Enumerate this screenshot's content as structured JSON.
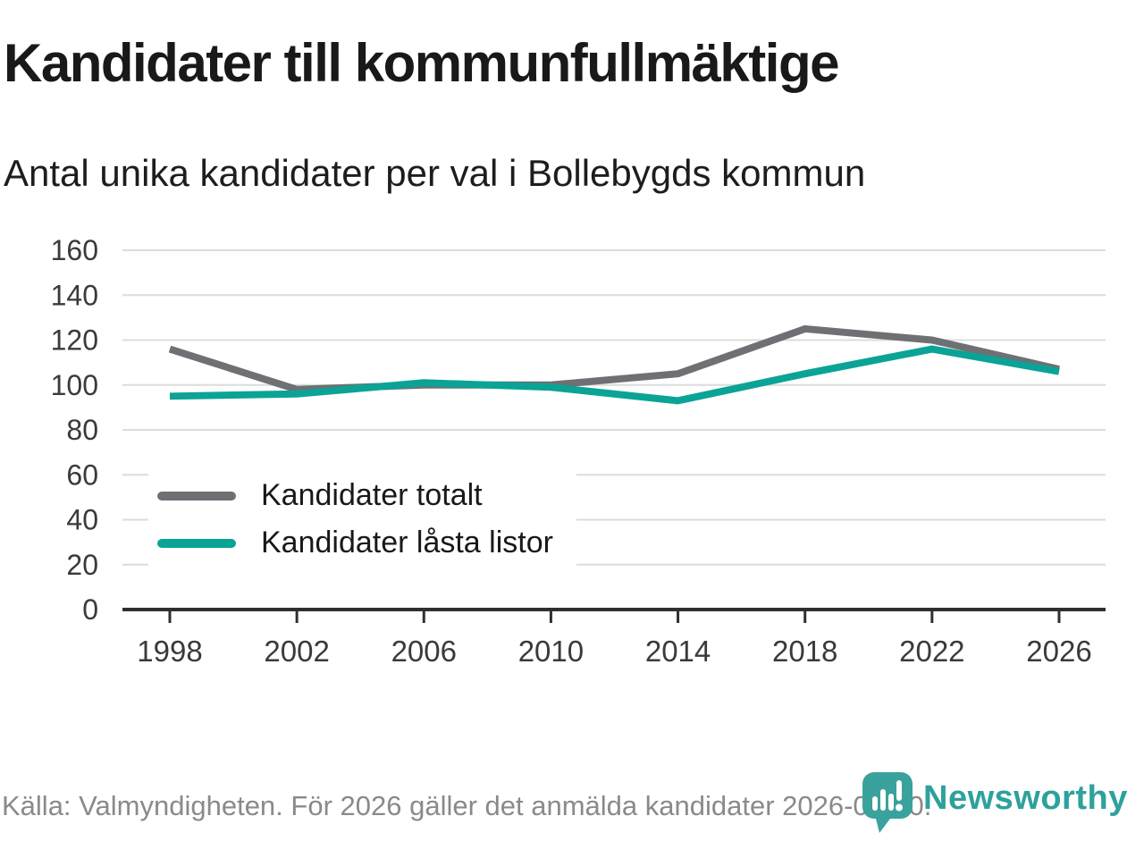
{
  "header": {
    "title": "Kandidater till kommunfullmäktige",
    "subtitle": "Antal unika kandidater per val i Bollebygds kommun"
  },
  "chart_data": {
    "type": "line",
    "x": [
      1998,
      2002,
      2006,
      2010,
      2014,
      2018,
      2022,
      2026
    ],
    "series": [
      {
        "name": "Kandidater totalt",
        "color": "#6e7074",
        "values": [
          116,
          98,
          100,
          100,
          105,
          125,
          120,
          107
        ]
      },
      {
        "name": "Kandidater låsta listor",
        "color": "#0ba396",
        "values": [
          95,
          96,
          101,
          99,
          93,
          105,
          116,
          106
        ]
      }
    ],
    "title": "Kandidater till kommunfullmäktige",
    "subtitle": "Antal unika kandidater per val i Bollebygds kommun",
    "xlabel": "",
    "ylabel": "",
    "ylim": [
      0,
      160
    ],
    "ytick_step": 20,
    "grid": true,
    "legend_position": "inside-left"
  },
  "footer": {
    "source": "Källa: Valmyndigheten. För 2026 gäller det anmälda kandidater 2026-04-10.",
    "logo_text": "Newsworthy"
  },
  "colors": {
    "grid": "#dcdcdc",
    "axis": "#2f2f2f",
    "tick_label": "#3a3a3a",
    "accent_teal": "#0ba396",
    "gray_line": "#6e7074",
    "footer_text": "#8a8a8a",
    "logo_teal": "#3aa29c"
  }
}
